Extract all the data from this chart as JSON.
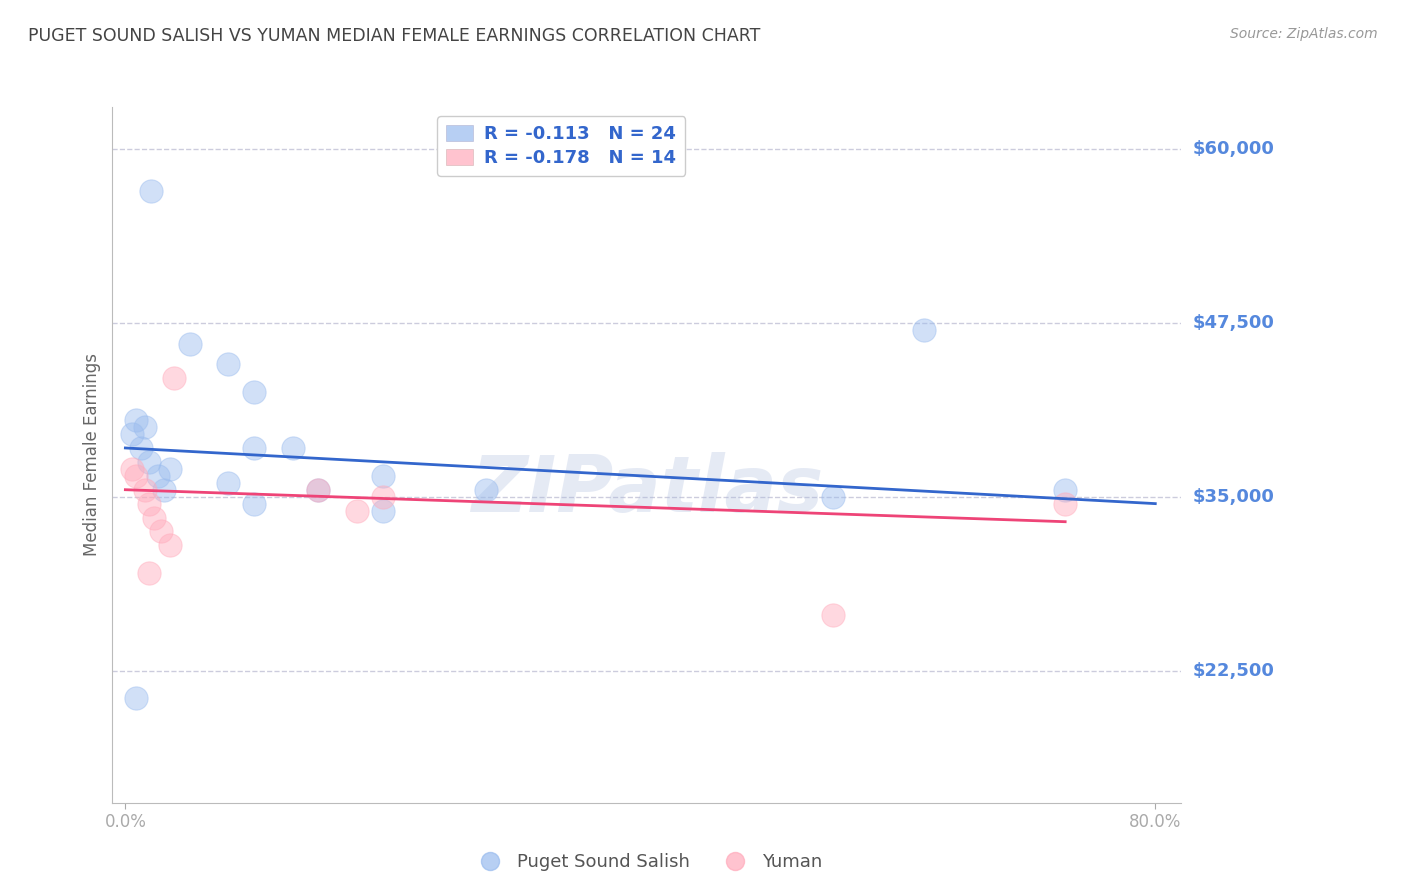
{
  "title": "PUGET SOUND SALISH VS YUMAN MEDIAN FEMALE EARNINGS CORRELATION CHART",
  "source": "Source: ZipAtlas.com",
  "ylabel": "Median Female Earnings",
  "watermark": "ZIPatlas",
  "ytick_labels": [
    "$60,000",
    "$47,500",
    "$35,000",
    "$22,500"
  ],
  "ytick_values": [
    60000,
    47500,
    35000,
    22500
  ],
  "ymin": 13000,
  "ymax": 63000,
  "xmin": -0.01,
  "xmax": 0.82,
  "legend_blue_r": "R = -0.113",
  "legend_blue_n": "N = 24",
  "legend_pink_r": "R = -0.178",
  "legend_pink_n": "N = 14",
  "blue_scatter_x": [
    0.02,
    0.05,
    0.08,
    0.1,
    0.1,
    0.015,
    0.008,
    0.005,
    0.012,
    0.018,
    0.025,
    0.03,
    0.035,
    0.08,
    0.1,
    0.13,
    0.15,
    0.2,
    0.2,
    0.28,
    0.55,
    0.62,
    0.73,
    0.008
  ],
  "blue_scatter_y": [
    57000,
    46000,
    44500,
    42500,
    38500,
    40000,
    40500,
    39500,
    38500,
    37500,
    36500,
    35500,
    37000,
    36000,
    34500,
    38500,
    35500,
    36500,
    34000,
    35500,
    35000,
    47000,
    35500,
    20500
  ],
  "pink_scatter_x": [
    0.005,
    0.008,
    0.015,
    0.018,
    0.022,
    0.028,
    0.035,
    0.15,
    0.2,
    0.18,
    0.55,
    0.73,
    0.018,
    0.038
  ],
  "pink_scatter_y": [
    37000,
    36500,
    35500,
    34500,
    33500,
    32500,
    31500,
    35500,
    35000,
    34000,
    26500,
    34500,
    29500,
    43500
  ],
  "blue_line_x": [
    0.0,
    0.8
  ],
  "blue_line_y": [
    38500,
    34500
  ],
  "pink_line_x": [
    0.0,
    0.73
  ],
  "pink_line_y": [
    35500,
    33200
  ],
  "title_color": "#444444",
  "blue_color": "#99bbee",
  "pink_color": "#ffaabb",
  "blue_line_color": "#3366cc",
  "pink_line_color": "#ee4477",
  "grid_color": "#ccccdd",
  "ytick_color": "#5588dd",
  "background": "#ffffff",
  "legend_text_color": "#3366cc",
  "legend_rn_color": "#3366cc",
  "bottom_legend_blue": "Puget Sound Salish",
  "bottom_legend_pink": "Yuman"
}
